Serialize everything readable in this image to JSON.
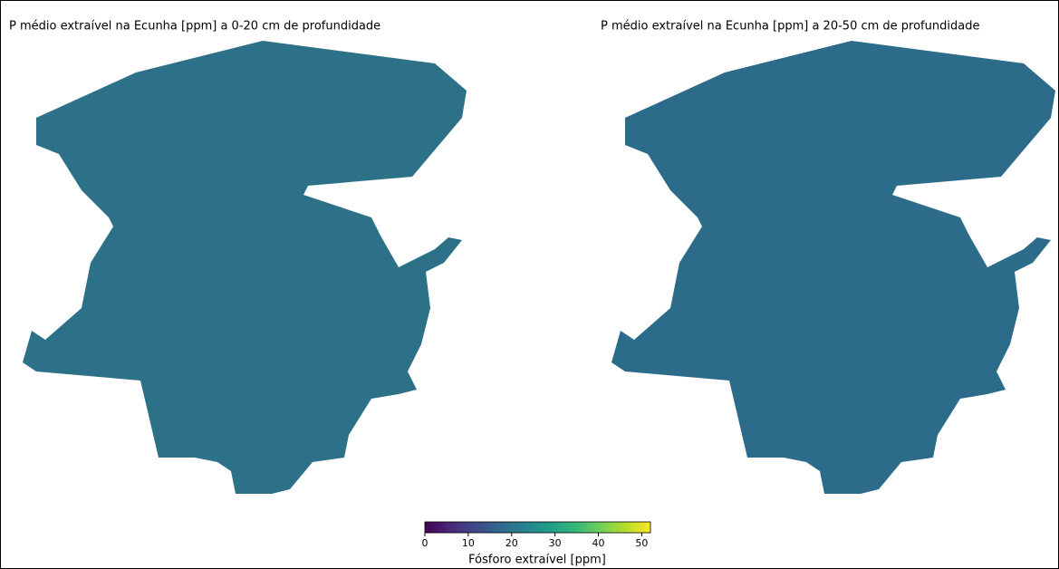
{
  "maps": [
    {
      "title": "P médio extraível na Ecunha [ppm] a 0-20 cm de profundidade"
    },
    {
      "title": "P médio extraível na Ecunha [ppm] a 20-50 cm de profundidade"
    }
  ],
  "colorbar": {
    "label": "Fósforo extraível [ppm]",
    "lim": [
      0,
      52
    ],
    "ticks": [
      0,
      10,
      20,
      30,
      40,
      50
    ],
    "colormap": "viridis"
  }
}
